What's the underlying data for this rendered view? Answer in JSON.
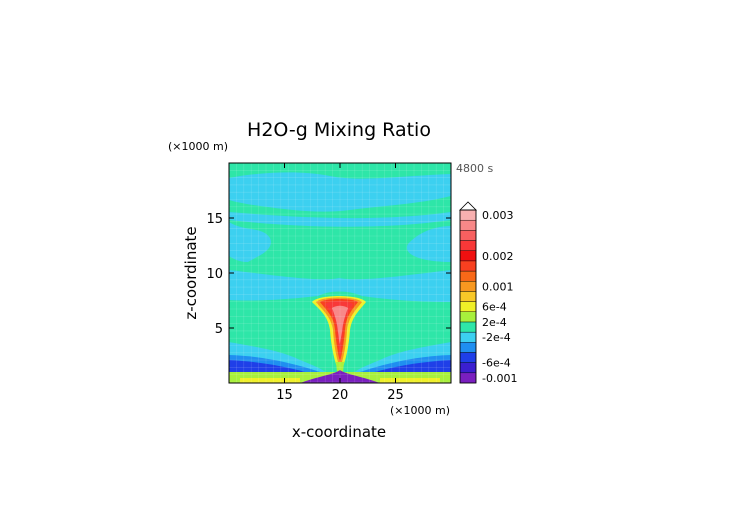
{
  "chart_data": {
    "type": "heatmap",
    "title": "H2O-g Mixing Ratio",
    "time_label": "4800 s",
    "xlabel": "x-coordinate",
    "ylabel": "z-coordinate",
    "x_unit": "(×1000 m)",
    "y_unit": "(×1000 m)",
    "xlim": [
      10,
      30
    ],
    "ylim": [
      0,
      20
    ],
    "x_ticks": [
      15,
      20,
      25
    ],
    "y_ticks": [
      5,
      10,
      15
    ],
    "colorbar": {
      "labels": [
        "0.003",
        "0.002",
        "0.001",
        "6e-4",
        "2e-4",
        "-2e-4",
        "-6e-4",
        "-0.001"
      ],
      "label_values": [
        0.003,
        0.002,
        0.001,
        0.0006,
        0.0002,
        -0.0002,
        -0.0006,
        -0.001
      ],
      "colors": [
        "#7a1fbf",
        "#3b1fd0",
        "#1f3fe8",
        "#1f8ff0",
        "#3cd0f0",
        "#2ee6a8",
        "#a8f03c",
        "#f0f028",
        "#f8c828",
        "#f89820",
        "#f86818",
        "#f84020",
        "#f01010",
        "#f83838",
        "#f86060",
        "#f88888",
        "#f8b0b0"
      ],
      "extend_max_color": "#ffffff"
    }
  }
}
